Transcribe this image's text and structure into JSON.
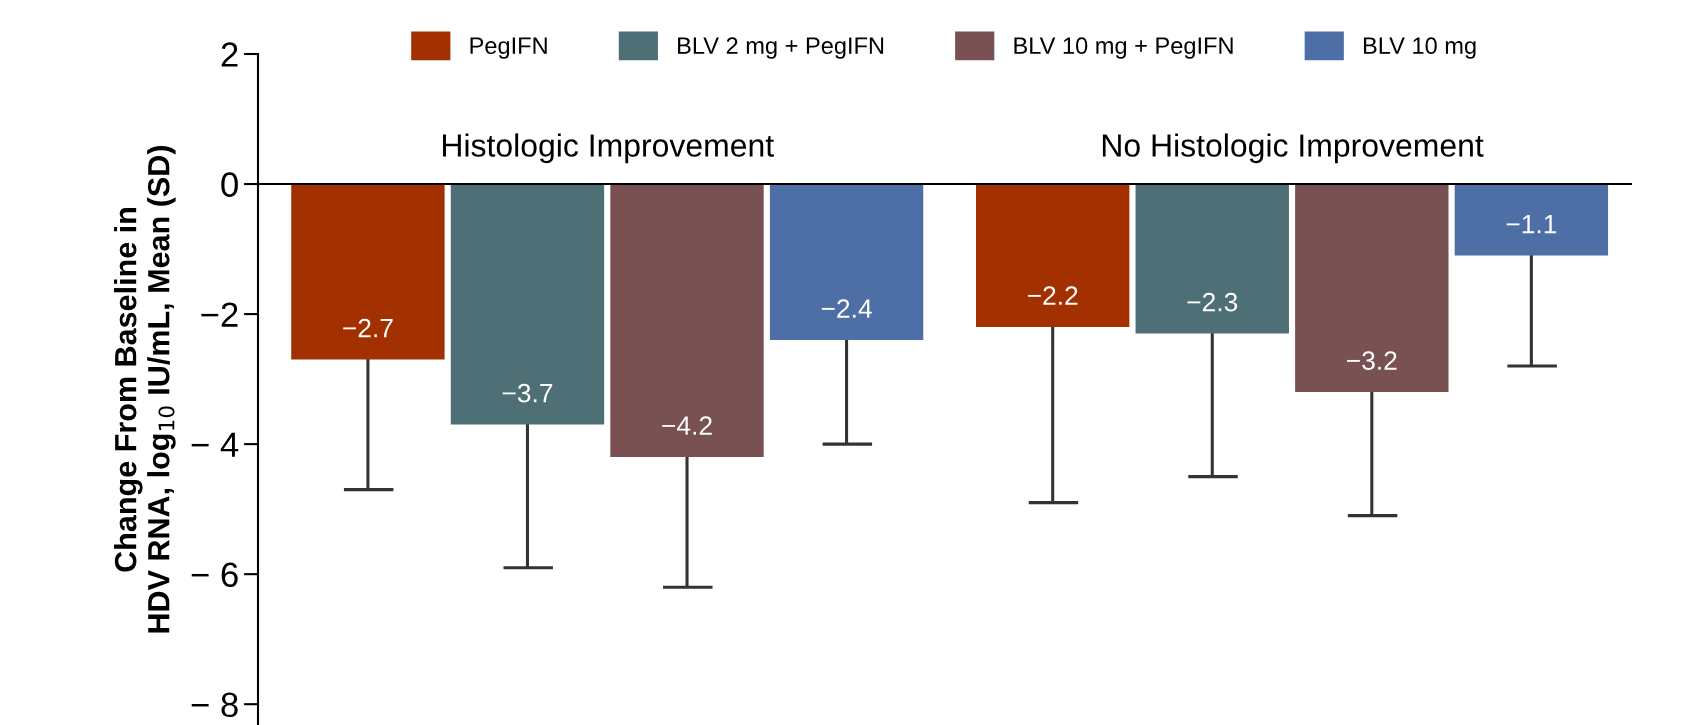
{
  "chart_data": {
    "type": "bar",
    "ylabel": "Change From Baseline in\nHDV RNA, log$_{10}$ IU/mL, Mean (SD)",
    "categories": [
      "Histologic Improvement",
      "No Histologic Improvement"
    ],
    "series": [
      {
        "name": "PegIFN",
        "color": "#a33000",
        "values": [
          -2.7,
          -2.2
        ],
        "errors": [
          [
            -4.7,
            -2.7
          ],
          [
            -4.9,
            -2.2
          ]
        ]
      },
      {
        "name": "BLV 2 mg + PegIFN",
        "color": "#4f6f76",
        "values": [
          -3.7,
          -2.3
        ],
        "errors": [
          [
            -5.9,
            -3.7
          ],
          [
            -4.5,
            -2.3
          ]
        ]
      },
      {
        "name": "BLV 10 mg + PegIFN",
        "color": "#7a5152",
        "values": [
          -4.2,
          -3.2
        ],
        "errors": [
          [
            -6.2,
            -4.2
          ],
          [
            -5.1,
            -3.2
          ]
        ]
      },
      {
        "name": "BLV 10 mg",
        "color": "#4e6fa6",
        "values": [
          -2.4,
          -1.1
        ],
        "errors": [
          [
            -4.0,
            -2.4
          ],
          [
            -2.8,
            -1.1
          ]
        ]
      }
    ],
    "ylim": [
      -8.32,
      2
    ],
    "yticks": [
      2,
      0,
      {
        "value": -2,
        "label": "−2"
      },
      {
        "value": -4,
        "label": "− 4"
      },
      {
        "value": -6,
        "label": "− 6"
      },
      {
        "value": -8,
        "label": "− 8"
      }
    ],
    "data_labels": true,
    "legend": "top",
    "grid": false
  }
}
